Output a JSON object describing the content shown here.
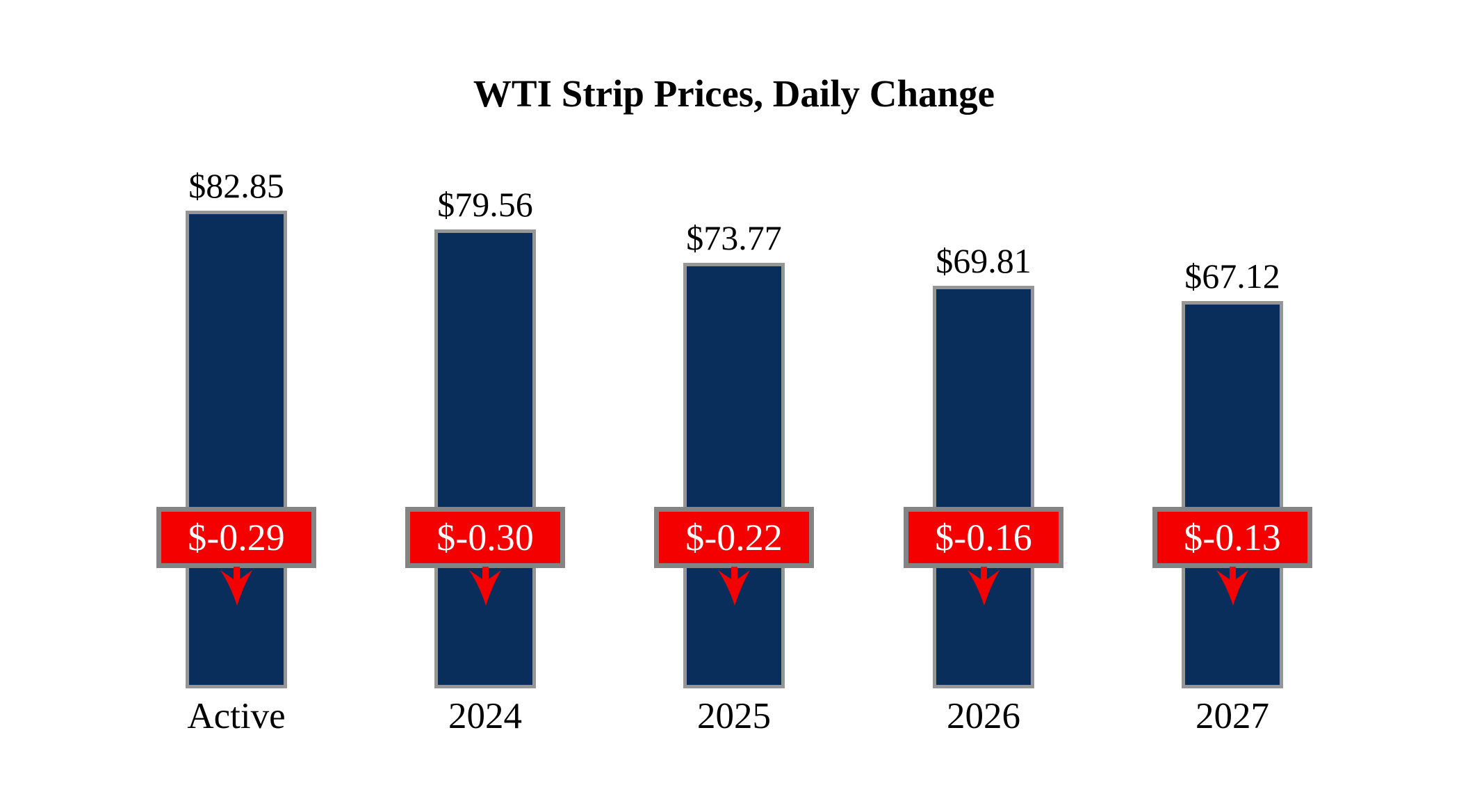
{
  "title": "WTI Strip Prices, Daily Change",
  "chart_data": {
    "type": "bar",
    "title": "WTI Strip Prices, Daily Change",
    "categories": [
      "Active",
      "2024",
      "2025",
      "2026",
      "2027"
    ],
    "series": [
      {
        "name": "WTI Strip Price",
        "values": [
          82.85,
          79.56,
          73.77,
          69.81,
          67.12
        ]
      },
      {
        "name": "Daily Change",
        "values": [
          -0.29,
          -0.3,
          -0.22,
          -0.16,
          -0.13
        ]
      }
    ],
    "ylim": [
      0,
      90
    ],
    "grid": false,
    "legend_position": "none",
    "bars": [
      {
        "category": "Active",
        "price": 82.85,
        "price_label": "$82.85",
        "change": -0.29,
        "change_label": "$-0.29"
      },
      {
        "category": "2024",
        "price": 79.56,
        "price_label": "$79.56",
        "change": -0.3,
        "change_label": "$-0.30"
      },
      {
        "category": "2025",
        "price": 73.77,
        "price_label": "$73.77",
        "change": -0.22,
        "change_label": "$-0.22"
      },
      {
        "category": "2026",
        "price": 69.81,
        "price_label": "$69.81",
        "change": -0.16,
        "change_label": "$-0.16"
      },
      {
        "category": "2027",
        "price": 67.12,
        "price_label": "$67.12",
        "change": -0.13,
        "change_label": "$-0.13"
      }
    ],
    "colors": {
      "bar_fill": "#0a2e5c",
      "bar_border": "#969696",
      "change_box_fill": "#f40000",
      "change_box_border": "#848484",
      "arrow": "#f40000",
      "price_text": "#000000",
      "change_text": "#ffffff",
      "background": "#ffffff"
    }
  }
}
